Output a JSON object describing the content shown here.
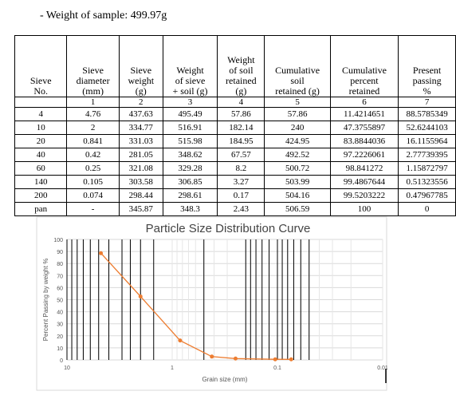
{
  "header": {
    "weight_label": "- Weight of sample: 499.97g"
  },
  "table": {
    "columns": [
      {
        "label_lines": [
          "Sieve",
          "No."
        ],
        "num": ""
      },
      {
        "label_lines": [
          "Sieve",
          "diameter",
          "(mm)"
        ],
        "num": "1"
      },
      {
        "label_lines": [
          "Sieve",
          "weight",
          "(g)"
        ],
        "num": "2"
      },
      {
        "label_lines": [
          "Weight",
          "of sieve",
          "+ soil (g)"
        ],
        "num": "3"
      },
      {
        "label_lines": [
          "Weight",
          "of soil",
          "retained",
          "(g)"
        ],
        "num": "4"
      },
      {
        "label_lines": [
          "Cumulative",
          "soil",
          "retained (g)"
        ],
        "num": "5"
      },
      {
        "label_lines": [
          "Cumulative",
          "percent",
          "retained"
        ],
        "num": "6"
      },
      {
        "label_lines": [
          "Present",
          "passing",
          "%"
        ],
        "num": "7"
      }
    ],
    "rows": [
      [
        "4",
        "4.76",
        "437.63",
        "495.49",
        "57.86",
        "57.86",
        "11.4214651",
        "88.5785349"
      ],
      [
        "10",
        "2",
        "334.77",
        "516.91",
        "182.14",
        "240",
        "47.3755897",
        "52.6244103"
      ],
      [
        "20",
        "0.841",
        "331.03",
        "515.98",
        "184.95",
        "424.95",
        "83.8844036",
        "16.1155964"
      ],
      [
        "40",
        "0.42",
        "281.05",
        "348.62",
        "67.57",
        "492.52",
        "97.2226061",
        "2.77739395"
      ],
      [
        "60",
        "0.25",
        "321.08",
        "329.28",
        "8.2",
        "500.72",
        "98.841272",
        "1.15872797"
      ],
      [
        "140",
        "0.105",
        "303.58",
        "306.85",
        "3.27",
        "503.99",
        "99.4867644",
        "0.51323556"
      ],
      [
        "200",
        "0.074",
        "298.44",
        "298.61",
        "0.17",
        "504.16",
        "99.5203222",
        "0.47967785"
      ],
      [
        "pan",
        "-",
        "345.87",
        "348.3",
        "2.43",
        "506.59",
        "100",
        "0"
      ]
    ]
  },
  "chart_data": {
    "type": "scatter",
    "title": "Particle Size Distribution Curve",
    "xlabel": "Grain size (mm)",
    "ylabel": "Percent Passing by weight %",
    "x_scale": "log",
    "x_reversed": true,
    "xlim": [
      10,
      0.01
    ],
    "ylim": [
      0,
      100
    ],
    "x_ticks": [
      {
        "value": 10,
        "label": "10"
      },
      {
        "value": 1,
        "label": "1"
      },
      {
        "value": 0.1,
        "label": "0.1"
      },
      {
        "value": 0.01,
        "label": "0.01"
      }
    ],
    "y_ticks": [
      0,
      10,
      20,
      30,
      40,
      50,
      60,
      70,
      80,
      90,
      100
    ],
    "grid": true,
    "series": [
      {
        "color": "#ED7D31",
        "points": [
          {
            "x": 4.76,
            "y": 88.5785349
          },
          {
            "x": 2,
            "y": 52.6244103
          },
          {
            "x": 0.841,
            "y": 16.1155964
          },
          {
            "x": 0.42,
            "y": 2.77739395
          },
          {
            "x": 0.25,
            "y": 1.15872797
          },
          {
            "x": 0.105,
            "y": 0.51323556
          },
          {
            "x": 0.074,
            "y": 0.47967785
          }
        ]
      }
    ],
    "vertical_marker_lines_x": [
      10,
      9,
      8,
      7,
      6,
      5,
      4,
      3,
      2.5,
      2,
      1.5,
      0.5,
      0.2,
      0.18,
      0.16,
      0.14,
      0.12,
      0.1,
      0.09,
      0.08,
      0.07,
      0.06,
      0.05
    ]
  }
}
